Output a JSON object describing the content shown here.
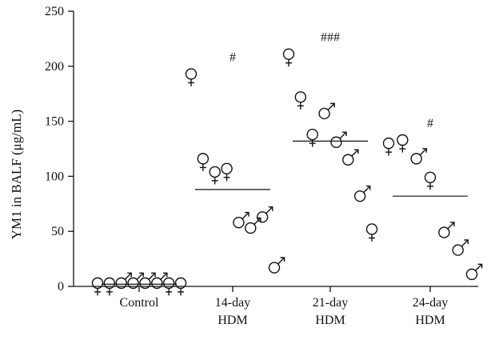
{
  "chart_data": {
    "type": "scatter",
    "ylabel": "YM1 in BALF (μg/mL)",
    "ylim": [
      0,
      250
    ],
    "yticks": [
      0,
      50,
      100,
      150,
      200,
      250
    ],
    "groups": [
      {
        "label_lines": [
          "Control"
        ],
        "mean": 2,
        "significance": "",
        "points": [
          {
            "sex": "female",
            "value": 3
          },
          {
            "sex": "female",
            "value": 3
          },
          {
            "sex": "male",
            "value": 3
          },
          {
            "sex": "male",
            "value": 3
          },
          {
            "sex": "male",
            "value": 3
          },
          {
            "sex": "male",
            "value": 3
          },
          {
            "sex": "female",
            "value": 3
          },
          {
            "sex": "female",
            "value": 3
          }
        ]
      },
      {
        "label_lines": [
          "14-day",
          "HDM"
        ],
        "mean": 88,
        "significance": "#",
        "points": [
          {
            "sex": "female",
            "value": 193
          },
          {
            "sex": "female",
            "value": 116
          },
          {
            "sex": "female",
            "value": 104
          },
          {
            "sex": "female",
            "value": 107
          },
          {
            "sex": "male",
            "value": 58
          },
          {
            "sex": "male",
            "value": 53
          },
          {
            "sex": "male",
            "value": 63
          },
          {
            "sex": "male",
            "value": 17
          }
        ]
      },
      {
        "label_lines": [
          "21-day",
          "HDM"
        ],
        "mean": 132,
        "significance": "###",
        "points": [
          {
            "sex": "female",
            "value": 211
          },
          {
            "sex": "female",
            "value": 172
          },
          {
            "sex": "female",
            "value": 138
          },
          {
            "sex": "male",
            "value": 157
          },
          {
            "sex": "male",
            "value": 131
          },
          {
            "sex": "male",
            "value": 115
          },
          {
            "sex": "male",
            "value": 82
          },
          {
            "sex": "female",
            "value": 52
          }
        ]
      },
      {
        "label_lines": [
          "24-day",
          "HDM"
        ],
        "mean": 82,
        "significance": "#",
        "points": [
          {
            "sex": "female",
            "value": 130
          },
          {
            "sex": "female",
            "value": 133
          },
          {
            "sex": "male",
            "value": 116
          },
          {
            "sex": "female",
            "value": 99
          },
          {
            "sex": "male",
            "value": 49
          },
          {
            "sex": "male",
            "value": 33
          },
          {
            "sex": "male",
            "value": 11
          }
        ]
      }
    ]
  }
}
